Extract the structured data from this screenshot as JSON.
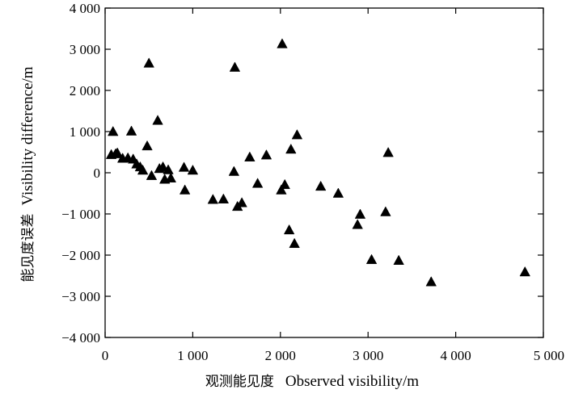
{
  "chart_data": {
    "type": "scatter",
    "title": "",
    "xlabel_cn": "观测能见度",
    "xlabel": "Observed visibility/m",
    "ylabel_cn": "能见度误差",
    "ylabel": "Visibility difference/m",
    "xlim": [
      0,
      5000
    ],
    "ylim": [
      -4000,
      4000
    ],
    "x_ticks": [
      0,
      1000,
      2000,
      3000,
      4000,
      5000
    ],
    "x_tick_labels": [
      "0",
      "1 000",
      "2 000",
      "3 000",
      "4 000",
      "5 000"
    ],
    "y_ticks": [
      4000,
      3000,
      2000,
      1000,
      0,
      -1000,
      -2000,
      -3000,
      -4000
    ],
    "y_tick_labels": [
      "4 000",
      "3 000",
      "2 000",
      "1 000",
      "0",
      "−1 000",
      "−2 000",
      "−3 000",
      "−4 000"
    ],
    "grid": false,
    "marker": "triangle",
    "marker_color": "#000000",
    "points": [
      [
        70,
        430
      ],
      [
        90,
        990
      ],
      [
        120,
        450
      ],
      [
        140,
        470
      ],
      [
        200,
        340
      ],
      [
        260,
        350
      ],
      [
        300,
        1000
      ],
      [
        320,
        320
      ],
      [
        360,
        200
      ],
      [
        400,
        130
      ],
      [
        430,
        50
      ],
      [
        480,
        640
      ],
      [
        500,
        2650
      ],
      [
        530,
        -80
      ],
      [
        600,
        1260
      ],
      [
        620,
        90
      ],
      [
        660,
        130
      ],
      [
        680,
        -170
      ],
      [
        720,
        60
      ],
      [
        750,
        -140
      ],
      [
        900,
        120
      ],
      [
        910,
        -430
      ],
      [
        1000,
        50
      ],
      [
        1230,
        -660
      ],
      [
        1350,
        -650
      ],
      [
        1470,
        20
      ],
      [
        1480,
        2550
      ],
      [
        1510,
        -830
      ],
      [
        1560,
        -740
      ],
      [
        1650,
        370
      ],
      [
        1740,
        -270
      ],
      [
        1840,
        420
      ],
      [
        2010,
        -430
      ],
      [
        2020,
        3120
      ],
      [
        2050,
        -300
      ],
      [
        2100,
        -1400
      ],
      [
        2120,
        560
      ],
      [
        2160,
        -1730
      ],
      [
        2190,
        910
      ],
      [
        2460,
        -340
      ],
      [
        2660,
        -510
      ],
      [
        2880,
        -1270
      ],
      [
        2910,
        -1020
      ],
      [
        3040,
        -2120
      ],
      [
        3200,
        -960
      ],
      [
        3230,
        480
      ],
      [
        3350,
        -2140
      ],
      [
        3720,
        -2660
      ],
      [
        4790,
        -2420
      ]
    ]
  }
}
